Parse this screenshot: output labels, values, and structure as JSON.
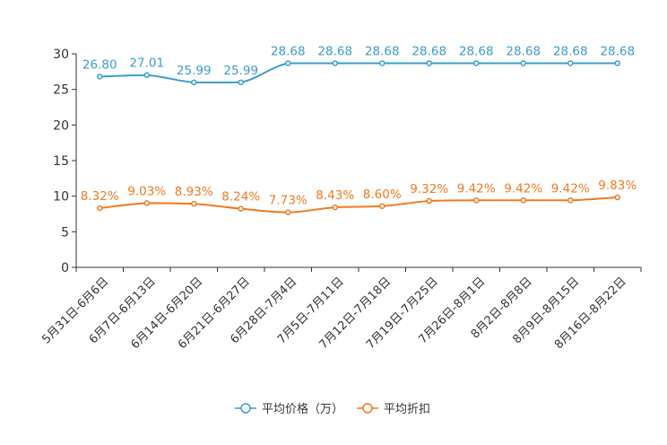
{
  "chart_data": {
    "type": "line",
    "title": "",
    "categories": [
      "5月31日-6月6日",
      "6月7日-6月13日",
      "6月14日-6月20日",
      "6月21日-6月27日",
      "6月28日-7月4日",
      "7月5日-7月11日",
      "7月12日-7月18日",
      "7月19日-7月25日",
      "7月26日-8月1日",
      "8月2日-8月8日",
      "8月9日-8月15日",
      "8月16日-8月22日"
    ],
    "ylim": [
      0,
      30
    ],
    "yticks": [
      0,
      5,
      10,
      15,
      20,
      25,
      30
    ],
    "legend_position": "bottom",
    "series": [
      {
        "name": "平均价格（万）",
        "color": "#3a9ccc",
        "values": [
          26.8,
          27.01,
          25.99,
          25.99,
          28.68,
          28.68,
          28.68,
          28.68,
          28.68,
          28.68,
          28.68,
          28.68
        ],
        "labels": [
          "26.80",
          "27.01",
          "25.99",
          "25.99",
          "28.68",
          "28.68",
          "28.68",
          "28.68",
          "28.68",
          "28.68",
          "28.68",
          "28.68"
        ]
      },
      {
        "name": "平均折扣",
        "color": "#f07820",
        "values": [
          8.32,
          9.03,
          8.93,
          8.24,
          7.73,
          8.43,
          8.6,
          9.32,
          9.42,
          9.42,
          9.42,
          9.83
        ],
        "labels": [
          "8.32%",
          "9.03%",
          "8.93%",
          "8.24%",
          "7.73%",
          "8.43%",
          "8.60%",
          "9.32%",
          "9.42%",
          "9.42%",
          "9.42%",
          "9.83%"
        ]
      }
    ]
  }
}
